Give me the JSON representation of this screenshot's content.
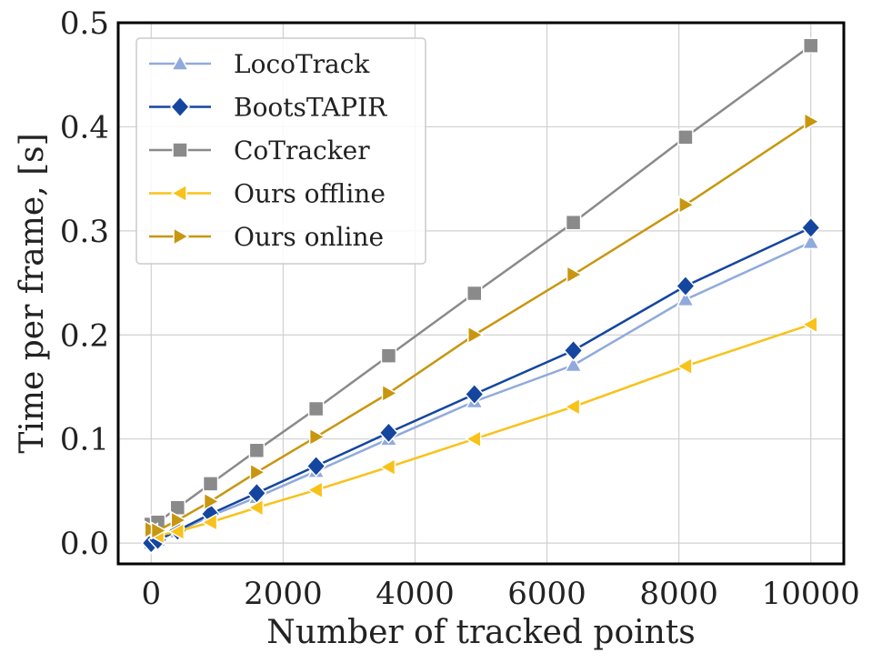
{
  "chart_data": {
    "type": "line",
    "title": "",
    "xlabel": "Number of tracked points",
    "ylabel": "Time per frame, [s]",
    "xlim": [
      -500,
      10500
    ],
    "ylim": [
      -0.02,
      0.5
    ],
    "xticks": [
      0,
      2000,
      4000,
      6000,
      8000,
      10000
    ],
    "xtick_labels": [
      "0",
      "2000",
      "4000",
      "6000",
      "8000",
      "10000"
    ],
    "yticks": [
      0.0,
      0.1,
      0.2,
      0.3,
      0.4,
      0.5
    ],
    "ytick_labels": [
      "0.0",
      "0.1",
      "0.2",
      "0.3",
      "0.4",
      "0.5"
    ],
    "grid": true,
    "legend_position": "top-left",
    "x": [
      0,
      100,
      400,
      900,
      1600,
      2500,
      3600,
      4900,
      6400,
      8100,
      10000
    ],
    "series": [
      {
        "name": "LocoTrack",
        "color": "#90aadc",
        "marker": "triangle-up",
        "values": [
          0.0,
          0.003,
          0.011,
          0.026,
          0.044,
          0.069,
          0.1,
          0.136,
          0.171,
          0.234,
          0.289
        ]
      },
      {
        "name": "BootsTAPIR",
        "color": "#1446a0",
        "marker": "diamond",
        "values": [
          0.0,
          0.003,
          0.012,
          0.028,
          0.048,
          0.074,
          0.106,
          0.143,
          0.185,
          0.247,
          0.303
        ]
      },
      {
        "name": "CoTracker",
        "color": "#8a8a8a",
        "marker": "square",
        "values": [
          0.018,
          0.02,
          0.034,
          0.057,
          0.089,
          0.129,
          0.18,
          0.24,
          0.308,
          0.39,
          0.478
        ]
      },
      {
        "name": "Ours offline",
        "color": "#f8c21a",
        "marker": "triangle-left",
        "values": [
          0.011,
          0.007,
          0.011,
          0.02,
          0.034,
          0.051,
          0.073,
          0.1,
          0.131,
          0.17,
          0.21
        ]
      },
      {
        "name": "Ours online",
        "color": "#c8960f",
        "marker": "triangle-right",
        "values": [
          0.013,
          0.012,
          0.022,
          0.04,
          0.068,
          0.102,
          0.144,
          0.2,
          0.258,
          0.325,
          0.405
        ]
      }
    ]
  }
}
